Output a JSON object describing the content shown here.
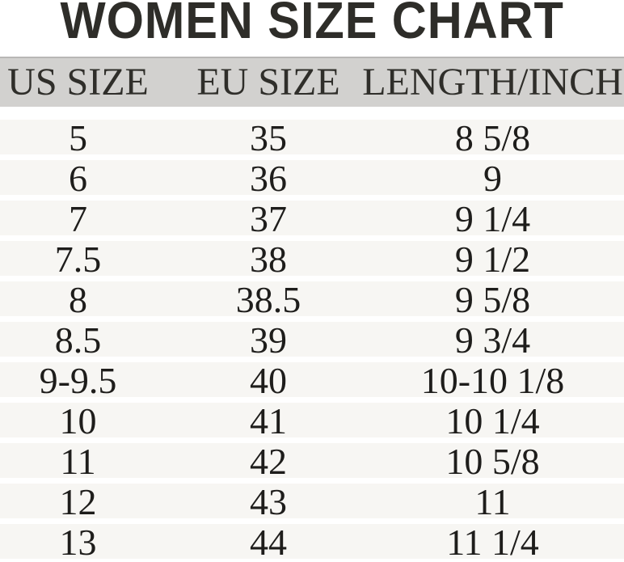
{
  "title": "WOMEN SIZE CHART",
  "chart_data": {
    "type": "table",
    "title": "WOMEN SIZE CHART",
    "columns": [
      "US SIZE",
      "EU SIZE",
      "LENGTH/INCH"
    ],
    "rows": [
      [
        "5",
        "35",
        "8 5/8"
      ],
      [
        "6",
        "36",
        "9"
      ],
      [
        "7",
        "37",
        "9 1/4"
      ],
      [
        "7.5",
        "38",
        "9 1/2"
      ],
      [
        "8",
        "38.5",
        "9 5/8"
      ],
      [
        "8.5",
        "39",
        "9 3/4"
      ],
      [
        "9-9.5",
        "40",
        "10-10 1/8"
      ],
      [
        "10",
        "41",
        "10 1/4"
      ],
      [
        "11",
        "42",
        "10 5/8"
      ],
      [
        "12",
        "43",
        "11"
      ],
      [
        "13",
        "44",
        "11 1/4"
      ]
    ]
  },
  "colors": {
    "header_bg": "#d2d1cf",
    "header_border": "#b8b7b5",
    "row_bg": "#f7f6f3",
    "title_color": "#2e2d29",
    "header_text": "#2f2e2a",
    "data_text": "#1e1d1b"
  }
}
